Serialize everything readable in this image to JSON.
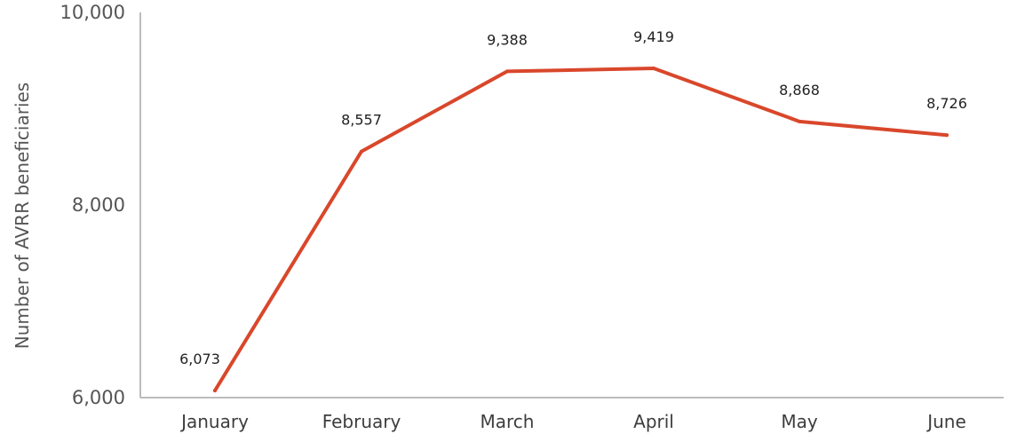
{
  "chart_data": {
    "type": "line",
    "title": "",
    "xlabel": "",
    "ylabel": "Number of AVRR beneficiaries",
    "categories": [
      "January",
      "February",
      "March",
      "April",
      "May",
      "June"
    ],
    "series": [
      {
        "values": [
          6073,
          8557,
          9388,
          9419,
          8868,
          8726
        ],
        "labels": [
          "6,073",
          "8,557",
          "9,388",
          "9,419",
          "8,868",
          "8,726"
        ],
        "color": "#d9472b"
      }
    ],
    "ylim": [
      6000,
      10000
    ],
    "yticks": [
      6000,
      8000,
      10000
    ],
    "ytick_labels": [
      "6,000",
      "8,000",
      "10,000"
    ],
    "grid": false,
    "legend": "none",
    "colors": {
      "axis": "#a6a6a6",
      "line": "#d9472b"
    }
  }
}
